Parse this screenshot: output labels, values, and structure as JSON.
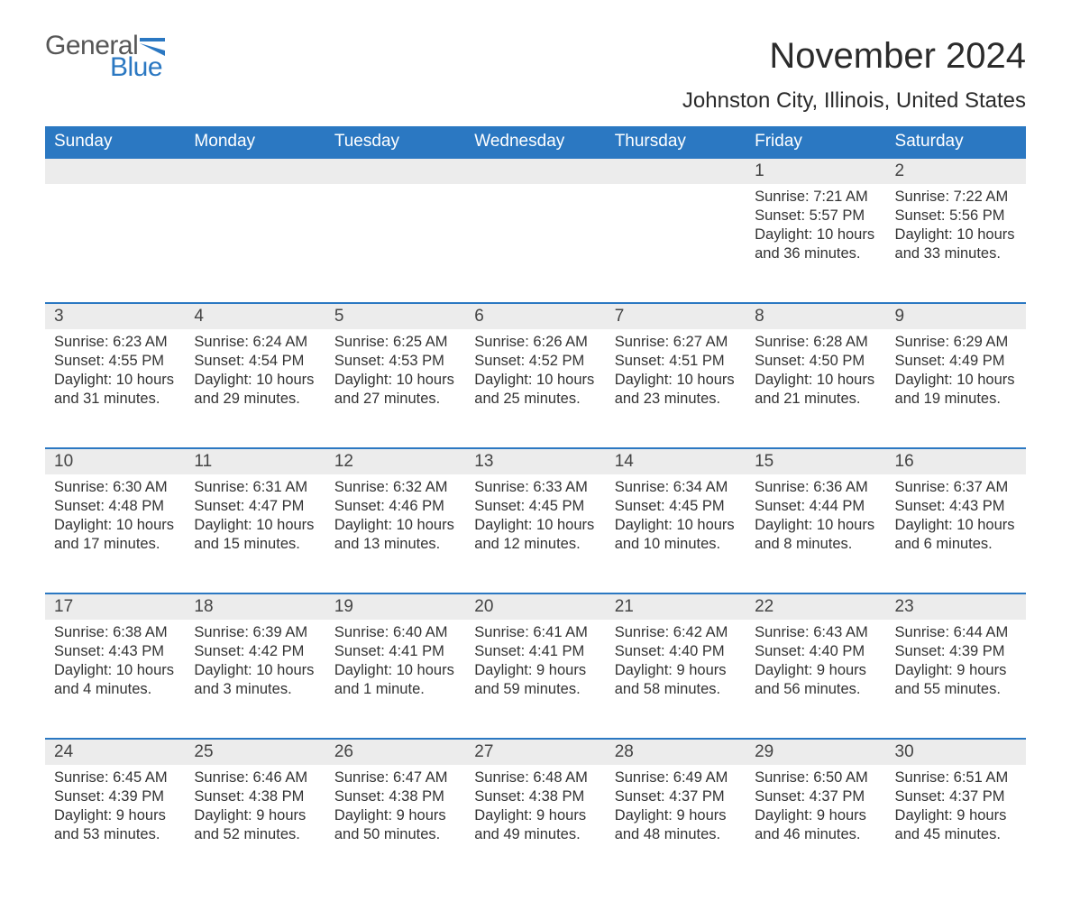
{
  "brand": {
    "part1": "General",
    "part2": "Blue",
    "flag_color": "#2b78c2",
    "text1_color": "#565656"
  },
  "title": "November 2024",
  "location": "Johnston City, Illinois, United States",
  "colors": {
    "header_bg": "#2b78c2",
    "header_text": "#ffffff",
    "daynum_bg": "#ececec",
    "row_border": "#2b78c2",
    "body_text": "#333333",
    "page_bg": "#ffffff"
  },
  "weekdays": [
    "Sunday",
    "Monday",
    "Tuesday",
    "Wednesday",
    "Thursday",
    "Friday",
    "Saturday"
  ],
  "weeks": [
    [
      {
        "empty": true
      },
      {
        "empty": true
      },
      {
        "empty": true
      },
      {
        "empty": true
      },
      {
        "empty": true
      },
      {
        "day": "1",
        "sunrise": "Sunrise: 7:21 AM",
        "sunset": "Sunset: 5:57 PM",
        "daylight": "Daylight: 10 hours and 36 minutes."
      },
      {
        "day": "2",
        "sunrise": "Sunrise: 7:22 AM",
        "sunset": "Sunset: 5:56 PM",
        "daylight": "Daylight: 10 hours and 33 minutes."
      }
    ],
    [
      {
        "day": "3",
        "sunrise": "Sunrise: 6:23 AM",
        "sunset": "Sunset: 4:55 PM",
        "daylight": "Daylight: 10 hours and 31 minutes."
      },
      {
        "day": "4",
        "sunrise": "Sunrise: 6:24 AM",
        "sunset": "Sunset: 4:54 PM",
        "daylight": "Daylight: 10 hours and 29 minutes."
      },
      {
        "day": "5",
        "sunrise": "Sunrise: 6:25 AM",
        "sunset": "Sunset: 4:53 PM",
        "daylight": "Daylight: 10 hours and 27 minutes."
      },
      {
        "day": "6",
        "sunrise": "Sunrise: 6:26 AM",
        "sunset": "Sunset: 4:52 PM",
        "daylight": "Daylight: 10 hours and 25 minutes."
      },
      {
        "day": "7",
        "sunrise": "Sunrise: 6:27 AM",
        "sunset": "Sunset: 4:51 PM",
        "daylight": "Daylight: 10 hours and 23 minutes."
      },
      {
        "day": "8",
        "sunrise": "Sunrise: 6:28 AM",
        "sunset": "Sunset: 4:50 PM",
        "daylight": "Daylight: 10 hours and 21 minutes."
      },
      {
        "day": "9",
        "sunrise": "Sunrise: 6:29 AM",
        "sunset": "Sunset: 4:49 PM",
        "daylight": "Daylight: 10 hours and 19 minutes."
      }
    ],
    [
      {
        "day": "10",
        "sunrise": "Sunrise: 6:30 AM",
        "sunset": "Sunset: 4:48 PM",
        "daylight": "Daylight: 10 hours and 17 minutes."
      },
      {
        "day": "11",
        "sunrise": "Sunrise: 6:31 AM",
        "sunset": "Sunset: 4:47 PM",
        "daylight": "Daylight: 10 hours and 15 minutes."
      },
      {
        "day": "12",
        "sunrise": "Sunrise: 6:32 AM",
        "sunset": "Sunset: 4:46 PM",
        "daylight": "Daylight: 10 hours and 13 minutes."
      },
      {
        "day": "13",
        "sunrise": "Sunrise: 6:33 AM",
        "sunset": "Sunset: 4:45 PM",
        "daylight": "Daylight: 10 hours and 12 minutes."
      },
      {
        "day": "14",
        "sunrise": "Sunrise: 6:34 AM",
        "sunset": "Sunset: 4:45 PM",
        "daylight": "Daylight: 10 hours and 10 minutes."
      },
      {
        "day": "15",
        "sunrise": "Sunrise: 6:36 AM",
        "sunset": "Sunset: 4:44 PM",
        "daylight": "Daylight: 10 hours and 8 minutes."
      },
      {
        "day": "16",
        "sunrise": "Sunrise: 6:37 AM",
        "sunset": "Sunset: 4:43 PM",
        "daylight": "Daylight: 10 hours and 6 minutes."
      }
    ],
    [
      {
        "day": "17",
        "sunrise": "Sunrise: 6:38 AM",
        "sunset": "Sunset: 4:43 PM",
        "daylight": "Daylight: 10 hours and 4 minutes."
      },
      {
        "day": "18",
        "sunrise": "Sunrise: 6:39 AM",
        "sunset": "Sunset: 4:42 PM",
        "daylight": "Daylight: 10 hours and 3 minutes."
      },
      {
        "day": "19",
        "sunrise": "Sunrise: 6:40 AM",
        "sunset": "Sunset: 4:41 PM",
        "daylight": "Daylight: 10 hours and 1 minute."
      },
      {
        "day": "20",
        "sunrise": "Sunrise: 6:41 AM",
        "sunset": "Sunset: 4:41 PM",
        "daylight": "Daylight: 9 hours and 59 minutes."
      },
      {
        "day": "21",
        "sunrise": "Sunrise: 6:42 AM",
        "sunset": "Sunset: 4:40 PM",
        "daylight": "Daylight: 9 hours and 58 minutes."
      },
      {
        "day": "22",
        "sunrise": "Sunrise: 6:43 AM",
        "sunset": "Sunset: 4:40 PM",
        "daylight": "Daylight: 9 hours and 56 minutes."
      },
      {
        "day": "23",
        "sunrise": "Sunrise: 6:44 AM",
        "sunset": "Sunset: 4:39 PM",
        "daylight": "Daylight: 9 hours and 55 minutes."
      }
    ],
    [
      {
        "day": "24",
        "sunrise": "Sunrise: 6:45 AM",
        "sunset": "Sunset: 4:39 PM",
        "daylight": "Daylight: 9 hours and 53 minutes."
      },
      {
        "day": "25",
        "sunrise": "Sunrise: 6:46 AM",
        "sunset": "Sunset: 4:38 PM",
        "daylight": "Daylight: 9 hours and 52 minutes."
      },
      {
        "day": "26",
        "sunrise": "Sunrise: 6:47 AM",
        "sunset": "Sunset: 4:38 PM",
        "daylight": "Daylight: 9 hours and 50 minutes."
      },
      {
        "day": "27",
        "sunrise": "Sunrise: 6:48 AM",
        "sunset": "Sunset: 4:38 PM",
        "daylight": "Daylight: 9 hours and 49 minutes."
      },
      {
        "day": "28",
        "sunrise": "Sunrise: 6:49 AM",
        "sunset": "Sunset: 4:37 PM",
        "daylight": "Daylight: 9 hours and 48 minutes."
      },
      {
        "day": "29",
        "sunrise": "Sunrise: 6:50 AM",
        "sunset": "Sunset: 4:37 PM",
        "daylight": "Daylight: 9 hours and 46 minutes."
      },
      {
        "day": "30",
        "sunrise": "Sunrise: 6:51 AM",
        "sunset": "Sunset: 4:37 PM",
        "daylight": "Daylight: 9 hours and 45 minutes."
      }
    ]
  ]
}
